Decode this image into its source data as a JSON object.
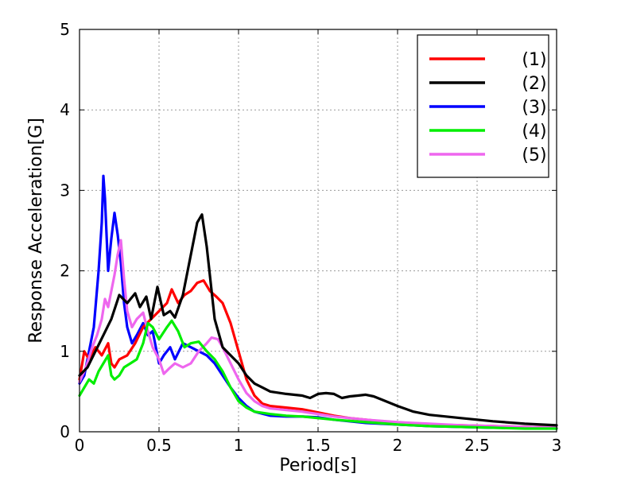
{
  "chart_data": {
    "type": "line",
    "title": "",
    "xlabel": "Period[s]",
    "ylabel": "Response Acceleration[G]",
    "xlim": [
      0,
      3
    ],
    "ylim": [
      0,
      5
    ],
    "xticks": [
      0,
      0.5,
      1,
      1.5,
      2,
      2.5,
      3
    ],
    "xtick_labels": [
      "0",
      "0.5",
      "1",
      "1.5",
      "2",
      "2.5",
      "3"
    ],
    "yticks": [
      0,
      1,
      2,
      3,
      4,
      5
    ],
    "ytick_labels": [
      "0",
      "1",
      "2",
      "3",
      "4",
      "5"
    ],
    "grid": true,
    "legend_position": "top-right",
    "series": [
      {
        "name": "(1)",
        "color": "#ff0000",
        "x": [
          0,
          0.03,
          0.06,
          0.1,
          0.14,
          0.18,
          0.2,
          0.22,
          0.25,
          0.3,
          0.35,
          0.4,
          0.45,
          0.5,
          0.55,
          0.58,
          0.62,
          0.66,
          0.7,
          0.74,
          0.78,
          0.82,
          0.86,
          0.9,
          0.95,
          1.0,
          1.05,
          1.1,
          1.15,
          1.2,
          1.3,
          1.4,
          1.5,
          1.6,
          1.7,
          1.8,
          1.9,
          2.0,
          2.2,
          2.4,
          2.6,
          2.8,
          3.0
        ],
        "y": [
          0.65,
          1.0,
          0.9,
          1.05,
          0.95,
          1.1,
          0.85,
          0.8,
          0.9,
          0.95,
          1.1,
          1.3,
          1.4,
          1.5,
          1.6,
          1.77,
          1.6,
          1.7,
          1.75,
          1.85,
          1.88,
          1.75,
          1.68,
          1.6,
          1.35,
          1.0,
          0.65,
          0.45,
          0.35,
          0.32,
          0.3,
          0.28,
          0.24,
          0.2,
          0.17,
          0.15,
          0.13,
          0.11,
          0.09,
          0.08,
          0.07,
          0.06,
          0.05
        ]
      },
      {
        "name": "(2)",
        "color": "#000000",
        "x": [
          0,
          0.05,
          0.1,
          0.15,
          0.2,
          0.25,
          0.3,
          0.35,
          0.38,
          0.42,
          0.45,
          0.49,
          0.53,
          0.57,
          0.6,
          0.65,
          0.7,
          0.74,
          0.77,
          0.8,
          0.85,
          0.9,
          0.95,
          1.0,
          1.05,
          1.1,
          1.15,
          1.2,
          1.3,
          1.4,
          1.45,
          1.5,
          1.55,
          1.6,
          1.65,
          1.7,
          1.75,
          1.8,
          1.85,
          1.9,
          2.0,
          2.1,
          2.2,
          2.4,
          2.6,
          2.8,
          3.0
        ],
        "y": [
          0.7,
          0.8,
          1.0,
          1.2,
          1.4,
          1.7,
          1.6,
          1.72,
          1.55,
          1.68,
          1.4,
          1.8,
          1.45,
          1.5,
          1.42,
          1.7,
          2.2,
          2.6,
          2.7,
          2.3,
          1.4,
          1.05,
          0.95,
          0.85,
          0.7,
          0.6,
          0.55,
          0.5,
          0.47,
          0.45,
          0.42,
          0.47,
          0.48,
          0.47,
          0.42,
          0.44,
          0.45,
          0.46,
          0.44,
          0.4,
          0.32,
          0.25,
          0.21,
          0.17,
          0.13,
          0.1,
          0.08
        ]
      },
      {
        "name": "(3)",
        "color": "#0000ff",
        "x": [
          0,
          0.03,
          0.06,
          0.09,
          0.12,
          0.14,
          0.15,
          0.16,
          0.18,
          0.2,
          0.22,
          0.24,
          0.26,
          0.28,
          0.3,
          0.33,
          0.36,
          0.4,
          0.43,
          0.46,
          0.5,
          0.53,
          0.57,
          0.6,
          0.65,
          0.7,
          0.75,
          0.8,
          0.85,
          0.9,
          0.95,
          1.0,
          1.05,
          1.1,
          1.2,
          1.3,
          1.4,
          1.5,
          1.6,
          1.8,
          2.0,
          2.2,
          2.4,
          2.6,
          2.8,
          3.0
        ],
        "y": [
          0.6,
          0.7,
          1.0,
          1.3,
          2.0,
          2.6,
          3.18,
          2.9,
          2.0,
          2.4,
          2.72,
          2.45,
          2.1,
          1.6,
          1.3,
          1.1,
          1.2,
          1.35,
          1.2,
          1.25,
          0.85,
          0.95,
          1.05,
          0.9,
          1.1,
          1.05,
          1.0,
          0.95,
          0.85,
          0.7,
          0.55,
          0.42,
          0.32,
          0.25,
          0.2,
          0.19,
          0.19,
          0.18,
          0.15,
          0.11,
          0.09,
          0.07,
          0.06,
          0.05,
          0.05,
          0.04
        ]
      },
      {
        "name": "(4)",
        "color": "#00ee00",
        "x": [
          0,
          0.03,
          0.06,
          0.09,
          0.12,
          0.15,
          0.18,
          0.2,
          0.22,
          0.25,
          0.28,
          0.32,
          0.36,
          0.4,
          0.43,
          0.46,
          0.5,
          0.55,
          0.58,
          0.62,
          0.66,
          0.7,
          0.75,
          0.8,
          0.85,
          0.9,
          0.95,
          1.0,
          1.05,
          1.1,
          1.2,
          1.3,
          1.4,
          1.5,
          1.6,
          1.8,
          2.0,
          2.2,
          2.4,
          2.6,
          2.8,
          3.0
        ],
        "y": [
          0.45,
          0.55,
          0.65,
          0.6,
          0.75,
          0.85,
          0.95,
          0.7,
          0.65,
          0.7,
          0.8,
          0.85,
          0.9,
          1.1,
          1.35,
          1.3,
          1.15,
          1.3,
          1.38,
          1.25,
          1.05,
          1.1,
          1.12,
          1.0,
          0.9,
          0.75,
          0.55,
          0.38,
          0.3,
          0.25,
          0.22,
          0.2,
          0.19,
          0.17,
          0.15,
          0.12,
          0.09,
          0.07,
          0.06,
          0.05,
          0.04,
          0.04
        ]
      },
      {
        "name": "(5)",
        "color": "#ee66ee",
        "x": [
          0,
          0.04,
          0.08,
          0.11,
          0.14,
          0.16,
          0.18,
          0.2,
          0.22,
          0.24,
          0.26,
          0.28,
          0.3,
          0.33,
          0.36,
          0.4,
          0.43,
          0.46,
          0.5,
          0.53,
          0.56,
          0.6,
          0.65,
          0.7,
          0.75,
          0.8,
          0.83,
          0.87,
          0.9,
          0.95,
          1.0,
          1.05,
          1.1,
          1.15,
          1.2,
          1.3,
          1.4,
          1.5,
          1.6,
          1.8,
          2.0,
          2.2,
          2.4,
          2.6,
          2.8,
          3.0
        ],
        "y": [
          0.62,
          0.8,
          1.05,
          1.2,
          1.4,
          1.65,
          1.55,
          1.75,
          1.95,
          2.2,
          2.38,
          1.9,
          1.5,
          1.3,
          1.4,
          1.48,
          1.25,
          1.05,
          0.9,
          0.72,
          0.78,
          0.85,
          0.8,
          0.85,
          1.0,
          1.1,
          1.17,
          1.15,
          1.05,
          0.85,
          0.65,
          0.48,
          0.38,
          0.32,
          0.29,
          0.27,
          0.25,
          0.22,
          0.19,
          0.15,
          0.12,
          0.1,
          0.08,
          0.07,
          0.06,
          0.05
        ]
      }
    ]
  }
}
